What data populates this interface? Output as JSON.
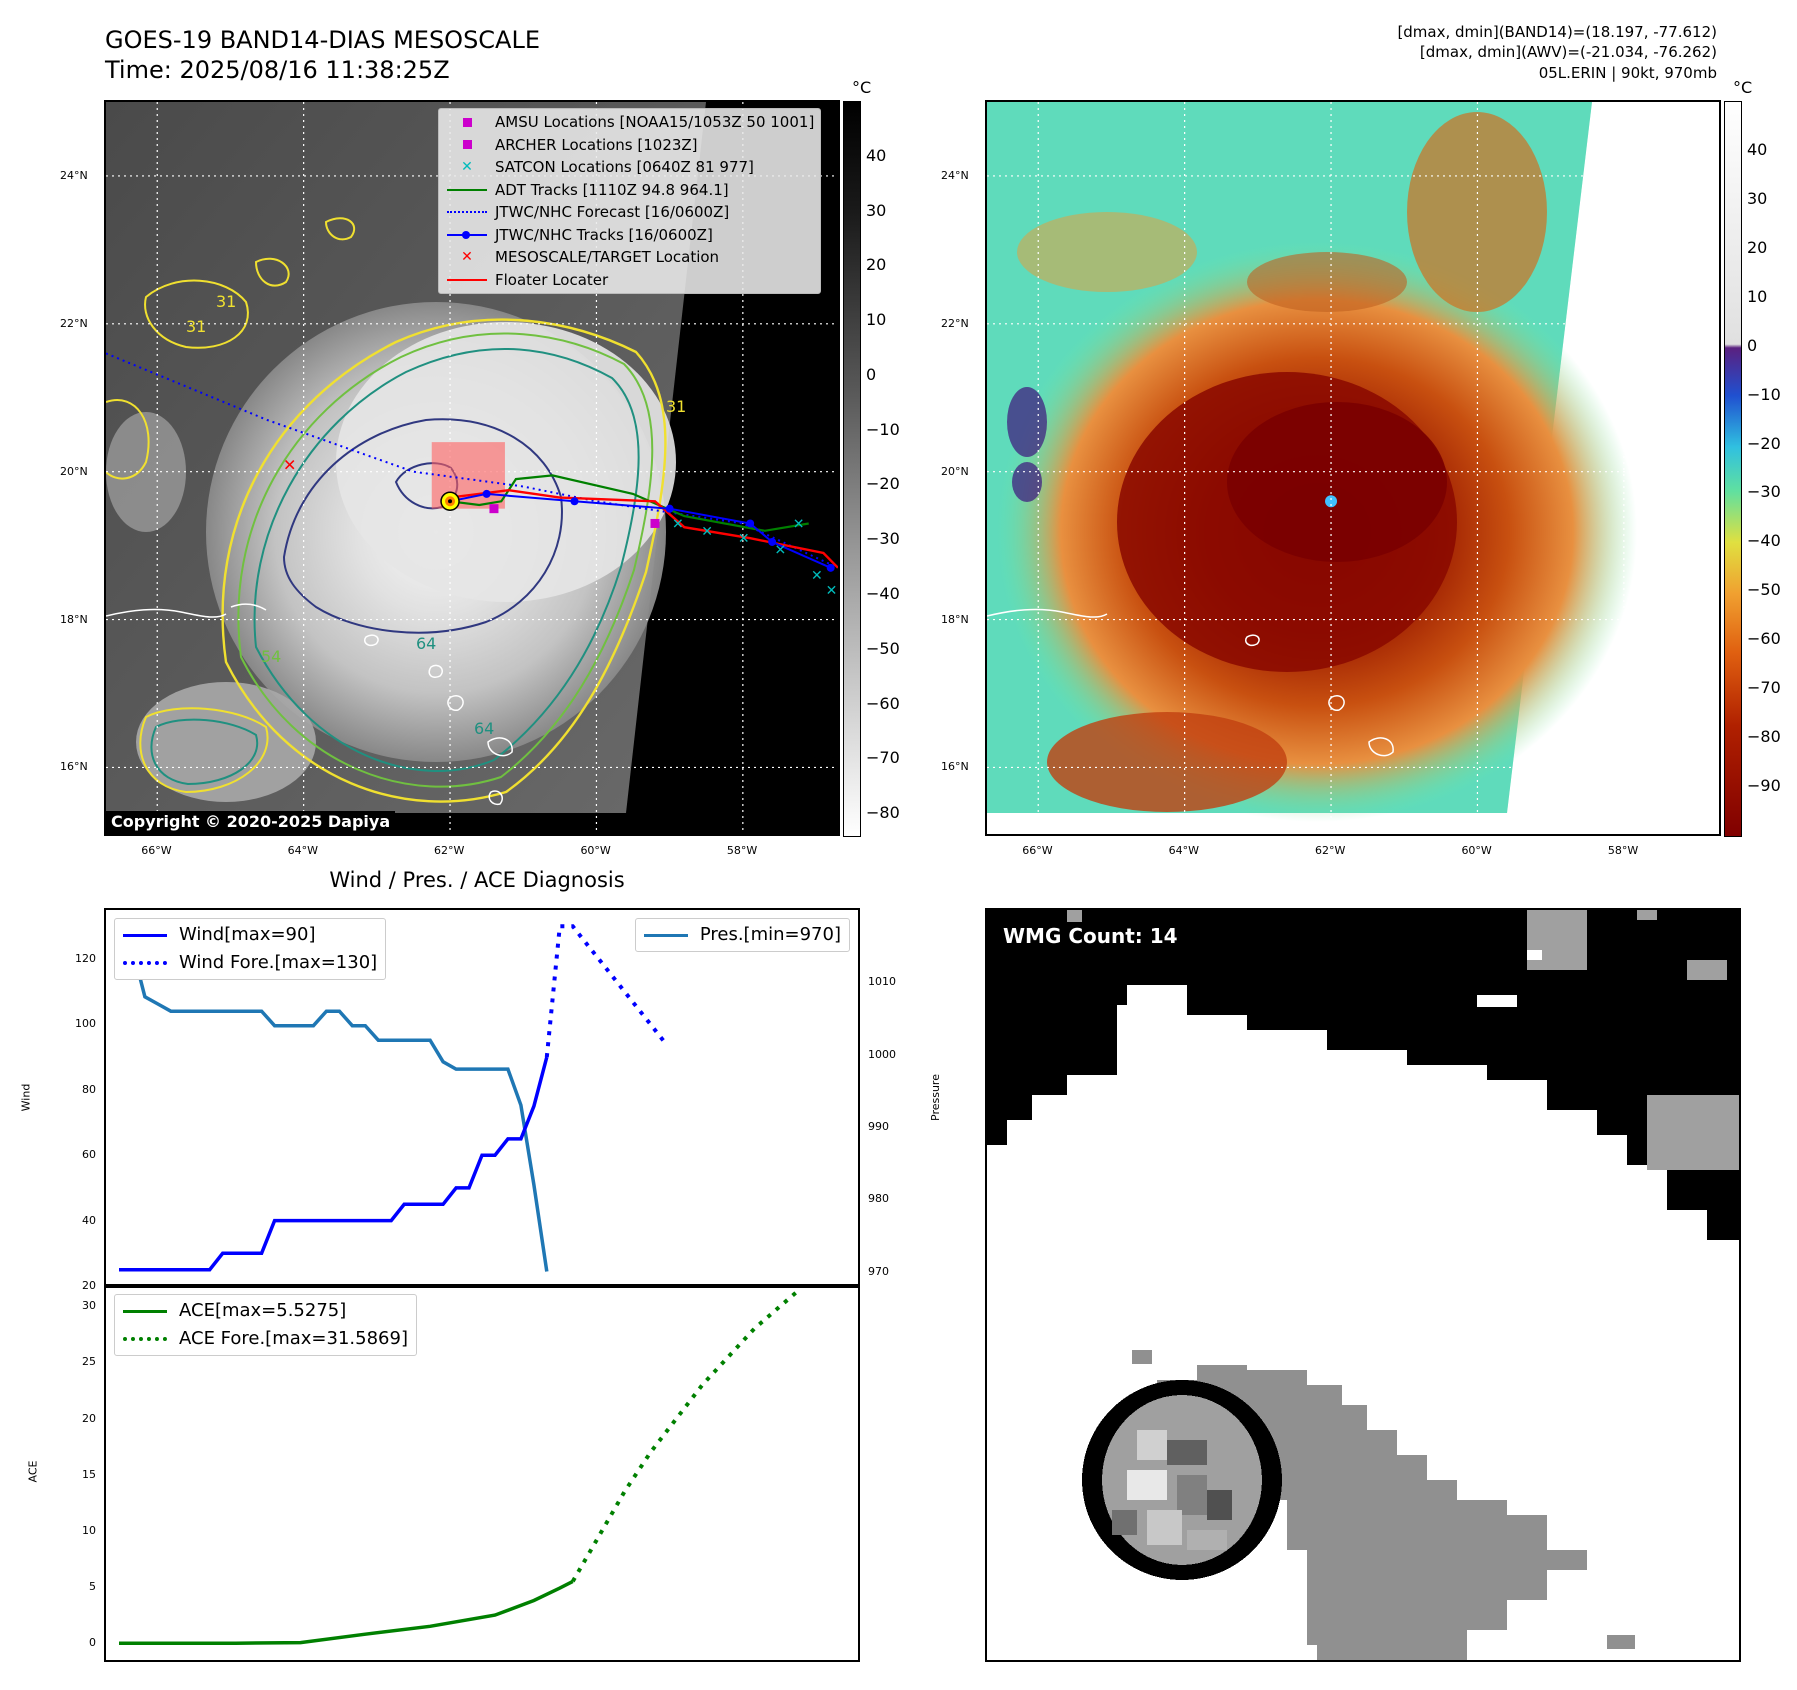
{
  "header": {
    "title_line1": "GOES-19 BAND14-DIAS MESOSCALE",
    "title_line2": "Time: 2025/08/16 11:38:25Z",
    "info_line1": "[dmax, dmin](BAND14)=(18.197, -77.612)",
    "info_line2": "[dmax, dmin](AWV)=(-21.034, -76.262)",
    "info_line3": "05L.ERIN | 90kt, 970mb"
  },
  "map_axes": {
    "lon_ticks": [
      "66°W",
      "64°W",
      "62°W",
      "60°W",
      "58°W"
    ],
    "lat_ticks": [
      "24°N",
      "22°N",
      "20°N",
      "18°N",
      "16°N"
    ],
    "lon_values": [
      -66,
      -64,
      -62,
      -60,
      -58
    ],
    "lat_values": [
      24,
      22,
      20,
      18,
      16
    ],
    "lon_range": [
      -66.7,
      -56.7
    ],
    "lat_range": [
      15.1,
      25.0
    ]
  },
  "left_map": {
    "colorbar_unit": "°C",
    "colorbar_ticks": [
      "40",
      "30",
      "20",
      "10",
      "0",
      "−10",
      "−20",
      "−30",
      "−40",
      "−50",
      "−60",
      "−70",
      "−80"
    ],
    "colorbar_values": [
      40,
      30,
      20,
      10,
      0,
      -10,
      -20,
      -30,
      -40,
      -50,
      -60,
      -70,
      -80
    ],
    "colorbar_range": [
      -84,
      50
    ],
    "legend": [
      {
        "label": "AMSU Locations [NOAA15/1053Z 50 1001]",
        "symbol": "square",
        "color": "#cc00cc"
      },
      {
        "label": "ARCHER Locations [1023Z]",
        "symbol": "square",
        "color": "#cc00cc"
      },
      {
        "label": "SATCON Locations [0640Z 81 977]",
        "symbol": "x",
        "color": "#00bbbb"
      },
      {
        "label": "ADT Tracks [1110Z 94.8 964.1]",
        "symbol": "line",
        "color": "#008000"
      },
      {
        "label": "JTWC/NHC Forecast [16/0600Z]",
        "symbol": "dotted",
        "color": "#0000ff"
      },
      {
        "label": "JTWC/NHC Tracks [16/0600Z]",
        "symbol": "line-dot",
        "color": "#0000ff"
      },
      {
        "label": "MESOSCALE/TARGET Location",
        "symbol": "x",
        "color": "#ff0000"
      },
      {
        "label": "Floater Locater",
        "symbol": "line",
        "color": "#ff0000"
      }
    ],
    "copyright": "Copyright © 2020-2025 Dapiya",
    "contour_labels": [
      "31",
      "31",
      "54",
      "64",
      "64",
      "31"
    ],
    "storm_center": {
      "lon": -62.0,
      "lat": 19.6
    },
    "target_location": {
      "lon": -64.2,
      "lat": 20.1
    },
    "floater_box": {
      "lon_min": -62.25,
      "lon_max": -61.25,
      "lat_min": 19.5,
      "lat_max": 20.4
    },
    "jtwc_forecast": [
      [
        -66.7,
        21.6
      ],
      [
        -64.5,
        20.7
      ],
      [
        -62.5,
        20.0
      ],
      [
        -61.0,
        19.8
      ],
      [
        -60.0,
        19.6
      ],
      [
        -58.0,
        19.3
      ],
      [
        -56.7,
        18.7
      ]
    ],
    "jtwc_track": [
      [
        -62.0,
        19.6
      ],
      [
        -61.5,
        19.7
      ],
      [
        -60.3,
        19.6
      ],
      [
        -59.0,
        19.5
      ],
      [
        -57.9,
        19.3
      ],
      [
        -57.6,
        19.05
      ],
      [
        -56.8,
        18.7
      ]
    ],
    "adt_track": [
      [
        -62.0,
        19.6
      ],
      [
        -61.6,
        19.55
      ],
      [
        -61.3,
        19.6
      ],
      [
        -61.1,
        19.9
      ],
      [
        -60.6,
        19.95
      ],
      [
        -59.5,
        19.7
      ],
      [
        -58.8,
        19.4
      ],
      [
        -57.7,
        19.2
      ],
      [
        -57.1,
        19.3
      ]
    ],
    "floater_track": [
      [
        -62.0,
        19.65
      ],
      [
        -61.2,
        19.75
      ],
      [
        -60.5,
        19.65
      ],
      [
        -59.2,
        19.6
      ],
      [
        -58.8,
        19.25
      ],
      [
        -57.9,
        19.1
      ],
      [
        -56.9,
        18.9
      ],
      [
        -56.7,
        18.7
      ]
    ],
    "satcon_points": [
      [
        -57.25,
        19.3
      ],
      [
        -58.9,
        19.3
      ],
      [
        -58.5,
        19.2
      ],
      [
        -58.0,
        19.1
      ],
      [
        -57.5,
        18.95
      ],
      [
        -57.0,
        18.6
      ],
      [
        -56.8,
        18.4
      ]
    ],
    "amsu_point": {
      "lon": -59.2,
      "lat": 19.3
    },
    "archer_point": {
      "lon": -61.4,
      "lat": 19.5
    }
  },
  "right_map": {
    "colorbar_unit": "°C",
    "colorbar_ticks": [
      "40",
      "30",
      "20",
      "10",
      "0",
      "−10",
      "−20",
      "−30",
      "−40",
      "−50",
      "−60",
      "−70",
      "−80",
      "−90"
    ],
    "colorbar_values": [
      40,
      30,
      20,
      10,
      0,
      -10,
      -20,
      -30,
      -40,
      -50,
      -60,
      -70,
      -80,
      -90
    ],
    "colorbar_range": [
      -100,
      50
    ],
    "eye": {
      "lon": -62.0,
      "lat": 19.6
    }
  },
  "wind_pres": {
    "title": "Wind / Pres. / ACE Diagnosis",
    "ylabel_left": "Wind",
    "ylabel_right": "Pressure",
    "wind_ticks": [
      "20",
      "40",
      "60",
      "80",
      "100",
      "120"
    ],
    "wind_values_ticks": [
      20,
      40,
      60,
      80,
      100,
      120
    ],
    "wind_range": [
      20,
      135
    ],
    "pres_ticks": [
      "970",
      "980",
      "990",
      "1000",
      "1010"
    ],
    "pres_values_ticks": [
      970,
      980,
      990,
      1000,
      1010
    ],
    "pres_range": [
      968,
      1020
    ],
    "legend_wind": "Wind[max=90]",
    "legend_wind_fore": "Wind Fore.[max=130]",
    "legend_pres": "Pres.[min=970]",
    "x_range": [
      0,
      58
    ],
    "wind_obs": [
      [
        1,
        25
      ],
      [
        2,
        25
      ],
      [
        3,
        25
      ],
      [
        4,
        25
      ],
      [
        5,
        25
      ],
      [
        6,
        25
      ],
      [
        7,
        25
      ],
      [
        8,
        25
      ],
      [
        9,
        30
      ],
      [
        10,
        30
      ],
      [
        11,
        30
      ],
      [
        12,
        30
      ],
      [
        13,
        40
      ],
      [
        14,
        40
      ],
      [
        15,
        40
      ],
      [
        16,
        40
      ],
      [
        17,
        40
      ],
      [
        18,
        40
      ],
      [
        19,
        40
      ],
      [
        20,
        40
      ],
      [
        21,
        40
      ],
      [
        22,
        40
      ],
      [
        23,
        45
      ],
      [
        24,
        45
      ],
      [
        25,
        45
      ],
      [
        26,
        45
      ],
      [
        27,
        50
      ],
      [
        28,
        50
      ],
      [
        29,
        60
      ],
      [
        30,
        60
      ],
      [
        31,
        65
      ],
      [
        32,
        65
      ],
      [
        33,
        75
      ],
      [
        34,
        90
      ]
    ],
    "wind_fore": [
      [
        34,
        90
      ],
      [
        35,
        130
      ],
      [
        36,
        130
      ],
      [
        37,
        125
      ],
      [
        38,
        120
      ],
      [
        39,
        115
      ],
      [
        40,
        110
      ],
      [
        41,
        105
      ],
      [
        42,
        100
      ],
      [
        43,
        95
      ]
    ],
    "pres_obs": [
      [
        1,
        1015
      ],
      [
        2,
        1015
      ],
      [
        3,
        1008
      ],
      [
        4,
        1007
      ],
      [
        5,
        1006
      ],
      [
        6,
        1006
      ],
      [
        7,
        1006
      ],
      [
        8,
        1006
      ],
      [
        9,
        1006
      ],
      [
        10,
        1006
      ],
      [
        11,
        1006
      ],
      [
        12,
        1006
      ],
      [
        13,
        1004
      ],
      [
        14,
        1004
      ],
      [
        15,
        1004
      ],
      [
        16,
        1004
      ],
      [
        17,
        1006
      ],
      [
        18,
        1006
      ],
      [
        19,
        1004
      ],
      [
        20,
        1004
      ],
      [
        21,
        1002
      ],
      [
        22,
        1002
      ],
      [
        23,
        1002
      ],
      [
        24,
        1002
      ],
      [
        25,
        1002
      ],
      [
        26,
        999
      ],
      [
        27,
        998
      ],
      [
        28,
        998
      ],
      [
        29,
        998
      ],
      [
        30,
        998
      ],
      [
        31,
        998
      ],
      [
        32,
        993
      ],
      [
        33,
        982
      ],
      [
        34,
        970
      ]
    ]
  },
  "ace": {
    "ylabel": "ACE",
    "ticks": [
      "0",
      "5",
      "10",
      "15",
      "20",
      "25",
      "30"
    ],
    "tick_values": [
      0,
      5,
      10,
      15,
      20,
      25,
      30
    ],
    "range": [
      -1.5,
      31.8
    ],
    "legend_ace": "ACE[max=5.5275]",
    "legend_ace_fore": "ACE Fore.[max=31.5869]",
    "ace_obs": [
      [
        1,
        0
      ],
      [
        5,
        0
      ],
      [
        10,
        0
      ],
      [
        15,
        0.05
      ],
      [
        20,
        0.8
      ],
      [
        25,
        1.5
      ],
      [
        30,
        2.5
      ],
      [
        33,
        3.8
      ],
      [
        35,
        4.9
      ],
      [
        36,
        5.5
      ]
    ],
    "ace_fore": [
      [
        36,
        5.5
      ],
      [
        38,
        9.5
      ],
      [
        40,
        13.5
      ],
      [
        42,
        17
      ],
      [
        44,
        20
      ],
      [
        46,
        23
      ],
      [
        48,
        25.5
      ],
      [
        50,
        28
      ],
      [
        52,
        30
      ],
      [
        53.5,
        31.5
      ]
    ]
  },
  "wmg": {
    "label": "WMG Count: 14"
  },
  "colors": {
    "wind": "#0000ff",
    "pres": "#1f77b4",
    "ace": "#008000",
    "floater": "#ff0000",
    "contour_yellow": "#f0e030",
    "contour_green": "#70c040",
    "contour_teal": "#209080",
    "contour_navy": "#303880"
  }
}
